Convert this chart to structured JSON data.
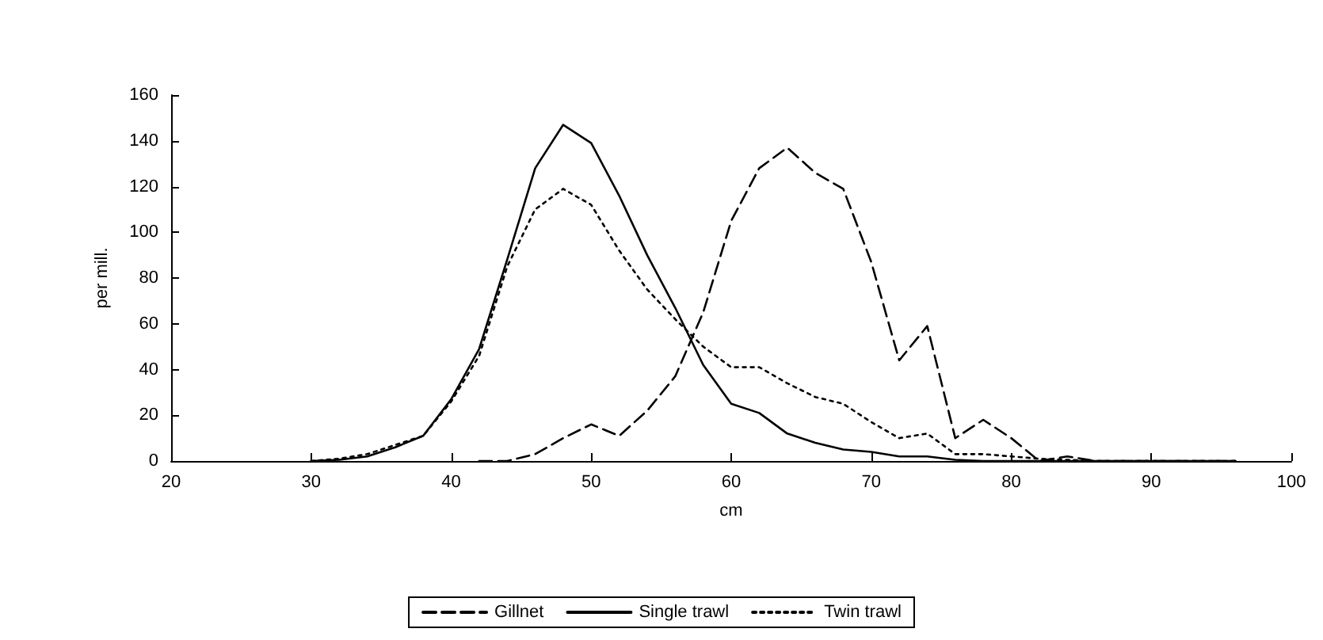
{
  "chart_data": {
    "type": "line",
    "xlabel": "cm",
    "ylabel": "per mill.",
    "x": [
      30,
      32,
      34,
      36,
      38,
      40,
      42,
      44,
      46,
      48,
      50,
      52,
      54,
      56,
      58,
      60,
      62,
      64,
      66,
      68,
      70,
      72,
      74,
      76,
      78,
      80,
      82,
      84,
      86,
      88,
      90,
      92,
      94,
      96
    ],
    "series": [
      {
        "name": "Gillnet",
        "color": "#000000",
        "line_style": "dashed",
        "values": [
          null,
          null,
          null,
          null,
          null,
          null,
          0,
          0,
          3,
          10,
          16,
          11,
          22,
          37,
          65,
          105,
          128,
          137,
          126,
          119,
          87,
          44,
          59,
          10,
          18,
          10,
          0,
          2,
          0,
          0,
          0,
          0,
          0,
          0
        ]
      },
      {
        "name": "Single trawl",
        "color": "#000000",
        "line_style": "solid",
        "values": [
          0,
          0.5,
          2,
          6,
          11,
          27,
          49,
          88,
          128,
          147,
          139,
          116,
          90,
          67,
          42,
          25,
          21,
          12,
          8,
          5,
          4,
          2,
          2,
          0.5,
          0,
          0,
          0,
          0,
          0,
          0,
          0,
          0,
          0,
          0
        ]
      },
      {
        "name": "Twin trawl",
        "color": "#000000",
        "line_style": "dotted",
        "values": [
          0,
          1,
          3,
          7,
          11,
          26,
          46,
          85,
          110,
          119,
          112,
          92,
          75,
          62,
          50,
          41,
          41,
          34,
          28,
          25,
          17,
          10,
          12,
          3,
          3,
          2,
          1,
          0.5,
          0,
          0,
          0,
          0,
          0,
          0
        ]
      }
    ],
    "xlim": [
      20,
      100
    ],
    "xticks": [
      20,
      30,
      40,
      50,
      60,
      70,
      80,
      90,
      100
    ],
    "ylim": [
      0,
      160
    ],
    "yticks": [
      0,
      20,
      40,
      60,
      80,
      100,
      120,
      140,
      160
    ],
    "grid": false,
    "legend": "bottom",
    "marker": "none"
  }
}
